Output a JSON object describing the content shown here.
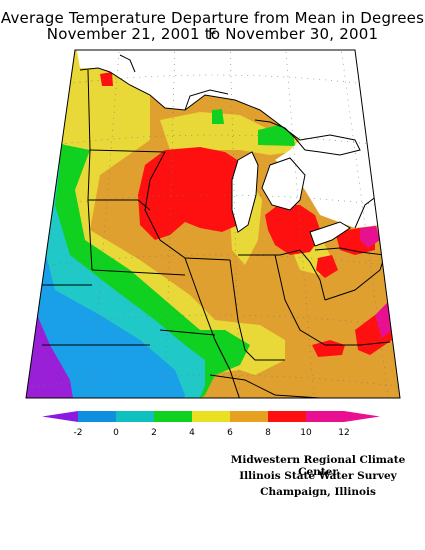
{
  "title": {
    "line1": "Average Temperature Departure from Mean in Degrees F",
    "line2": "November 21, 2001 to November 30, 2001"
  },
  "legend": {
    "ticks": [
      "-2",
      "0",
      "2",
      "4",
      "6",
      "8",
      "10",
      "12"
    ],
    "colors": [
      "#8a1ae0",
      "#0f8fe0",
      "#10c0c0",
      "#10d020",
      "#e8e020",
      "#e8a020",
      "#ff1010",
      "#e81090"
    ]
  },
  "map": {
    "colors": {
      "outside": "#ffffff",
      "lake": "#ffffff",
      "c_m2": "#9a20d8",
      "c_0": "#1aa0e8",
      "c_2": "#20c8c8",
      "c_4": "#10d020",
      "c_6": "#e8d838",
      "c_8": "#e0a030",
      "c_10": "#ff1010",
      "c_12": "#e81090"
    }
  },
  "credits": {
    "line1": "Midwestern Regional Climate Center",
    "line2": "Illinois State Water Survey",
    "line3": "Champaign, Illinois"
  }
}
